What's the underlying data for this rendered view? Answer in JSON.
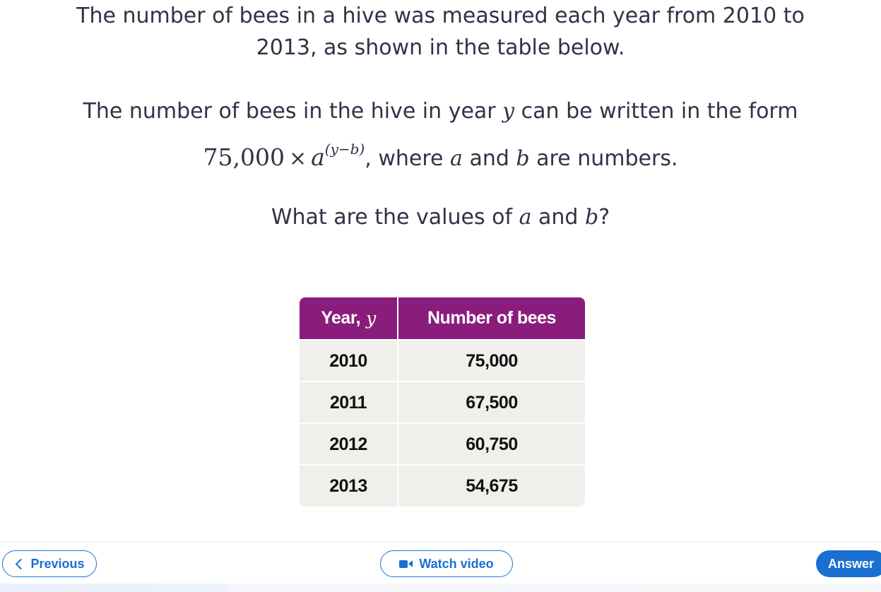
{
  "question": {
    "line1": "The number of bees in a hive was measured each year from 2010 to",
    "line2": "2013, as shown in the table below.",
    "line3_pre": "The number of bees in the hive in year ",
    "line3_var": "y",
    "line3_post": " can be written in the form",
    "formula_coeff": "75,000",
    "formula_times": "×",
    "formula_base": "a",
    "formula_exp": "(y−b)",
    "line4_post_a": ", where ",
    "var_a": "a",
    "line4_and": " and ",
    "var_b": "b",
    "line4_end": " are numbers.",
    "prompt_pre": "What are the values of ",
    "prompt_and": " and ",
    "prompt_end": "?"
  },
  "table": {
    "header_year": "Year,",
    "header_year_var": "y",
    "header_bees": "Number of bees",
    "rows": [
      {
        "year": "2010",
        "bees": "75,000"
      },
      {
        "year": "2011",
        "bees": "67,500"
      },
      {
        "year": "2012",
        "bees": "60,750"
      },
      {
        "year": "2013",
        "bees": "54,675"
      }
    ]
  },
  "footer": {
    "previous_label": "Previous",
    "video_label": "Watch video",
    "answer_label": "Answer"
  },
  "colors": {
    "table_header": "#8a1c7c",
    "table_body": "#f1efeb",
    "accent_blue": "#1a6fd1",
    "text": "#2f3346"
  },
  "icons": {
    "previous": "chevron-left-icon",
    "video": "video-camera-icon"
  }
}
